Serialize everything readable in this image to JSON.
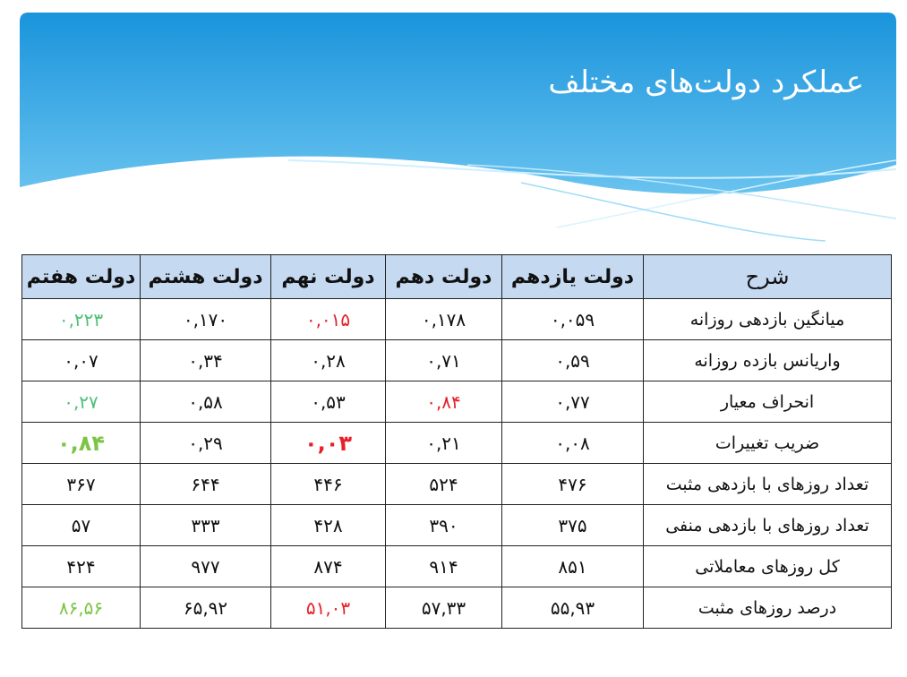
{
  "slide": {
    "title": "عملکرد دولت‌های مختلف",
    "colors": {
      "banner_top": "#1a94dc",
      "banner_bottom": "#7fd0f4",
      "header_fill": "#c5d9f1",
      "green": "#4fbf78",
      "lime": "#7cc443",
      "red": "#e8202a"
    }
  },
  "table": {
    "headers": [
      "شرح",
      "دولت یازدهم",
      "دولت دهم",
      "دولت نهم",
      "دولت هشتم",
      "دولت هفتم"
    ],
    "rows": [
      {
        "label": "میانگین بازدهی روزانه",
        "values": [
          "۰,۰۵۹",
          "۰,۱۷۸",
          "۰,۰۱۵",
          "۰,۱۷۰",
          "۰,۲۲۳"
        ],
        "highlights": [
          "",
          "",
          "red",
          "",
          "green"
        ]
      },
      {
        "label": "واریانس بازده روزانه",
        "values": [
          "۰,۵۹",
          "۰,۷۱",
          "۰,۲۸",
          "۰,۳۴",
          "۰,۰۷"
        ],
        "highlights": [
          "",
          "",
          "",
          "",
          ""
        ]
      },
      {
        "label": "انحراف معیار",
        "values": [
          "۰,۷۷",
          "۰,۸۴",
          "۰,۵۳",
          "۰,۵۸",
          "۰,۲۷"
        ],
        "highlights": [
          "",
          "red",
          "",
          "",
          "green"
        ]
      },
      {
        "label": "ضریب تغییرات",
        "values": [
          "۰,۰۸",
          "۰,۲۱",
          "۰,۰۳",
          "۰,۲۹",
          "۰,۸۴"
        ],
        "highlights": [
          "",
          "",
          "red-bold",
          "",
          "lime-bold"
        ]
      },
      {
        "label": "تعداد روزهای با بازدهی مثبت",
        "values": [
          "۴۷۶",
          "۵۲۴",
          "۴۴۶",
          "۶۴۴",
          "۳۶۷"
        ],
        "highlights": [
          "",
          "",
          "",
          "",
          ""
        ]
      },
      {
        "label": "تعداد روزهای با بازدهی منفی",
        "values": [
          "۳۷۵",
          "۳۹۰",
          "۴۲۸",
          "۳۳۳",
          "۵۷"
        ],
        "highlights": [
          "",
          "",
          "",
          "",
          ""
        ]
      },
      {
        "label": "کل روزهای معاملاتی",
        "values": [
          "۸۵۱",
          "۹۱۴",
          "۸۷۴",
          "۹۷۷",
          "۴۲۴"
        ],
        "highlights": [
          "",
          "",
          "",
          "",
          ""
        ]
      },
      {
        "label": "درصد روزهای مثبت",
        "values": [
          "۵۵,۹۳",
          "۵۷,۳۳",
          "۵۱,۰۳",
          "۶۵,۹۲",
          "۸۶,۵۶"
        ],
        "highlights": [
          "",
          "",
          "red",
          "",
          "lime"
        ]
      }
    ]
  }
}
